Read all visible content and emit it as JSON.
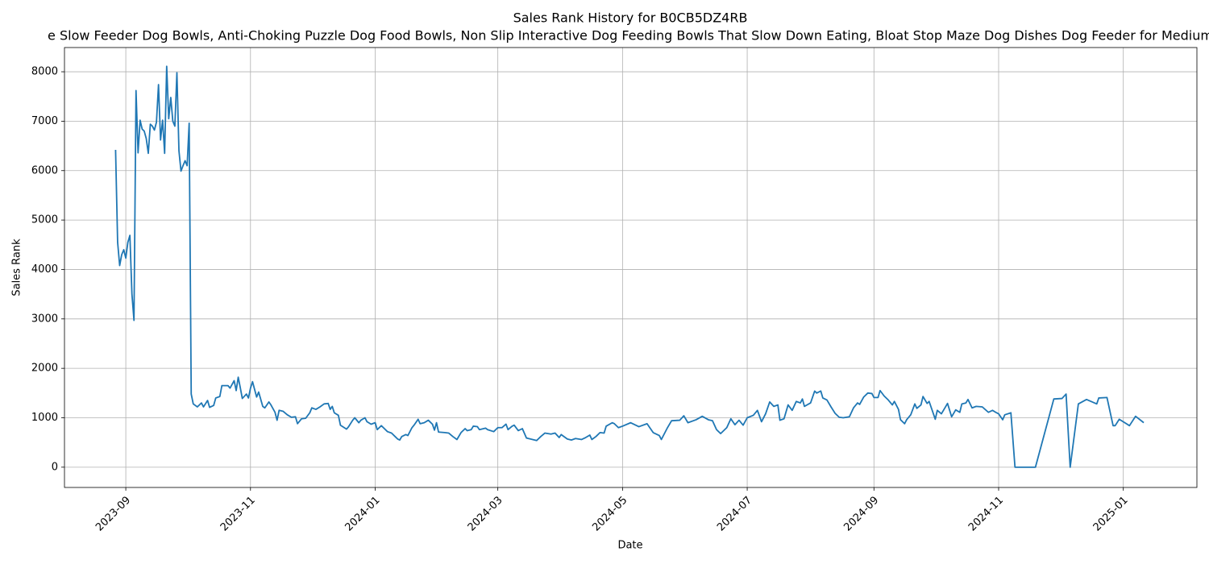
{
  "chart_data": {
    "type": "line",
    "title": "Sales Rank History for B0CB5DZ4RB",
    "subtitle": "e Slow Feeder Dog Bowls, Anti-Choking Puzzle Dog Food Bowls, Non Slip Interactive Dog Feeding Bowls That Slow Down Eating, Bloat Stop Maze Dog Dishes Dog Feeder for Medium",
    "x_label": "Date",
    "y_label": "Sales Rank",
    "color": "#1f77b4",
    "grid": true,
    "xlim": [
      "2023-08-02",
      "2025-02-06"
    ],
    "ylim": [
      -410,
      8490
    ],
    "yticks": [
      0,
      1000,
      2000,
      3000,
      4000,
      5000,
      6000,
      7000,
      8000
    ],
    "xticks": [
      {
        "value": "2023-09-01",
        "label": "2023-09"
      },
      {
        "value": "2023-11-01",
        "label": "2023-11"
      },
      {
        "value": "2024-01-01",
        "label": "2024-01"
      },
      {
        "value": "2024-03-01",
        "label": "2024-03"
      },
      {
        "value": "2024-05-01",
        "label": "2024-05"
      },
      {
        "value": "2024-07-01",
        "label": "2024-07"
      },
      {
        "value": "2024-09-01",
        "label": "2024-09"
      },
      {
        "value": "2024-11-01",
        "label": "2024-11"
      },
      {
        "value": "2025-01-01",
        "label": "2025-01"
      }
    ],
    "x": [
      "2023-08-27",
      "2023-08-28",
      "2023-08-29",
      "2023-08-30",
      "2023-08-31",
      "2023-09-01",
      "2023-09-02",
      "2023-09-03",
      "2023-09-04",
      "2023-09-05",
      "2023-09-06",
      "2023-09-07",
      "2023-09-08",
      "2023-09-09",
      "2023-09-10",
      "2023-09-11",
      "2023-09-12",
      "2023-09-13",
      "2023-09-14",
      "2023-09-15",
      "2023-09-16",
      "2023-09-17",
      "2023-09-18",
      "2023-09-19",
      "2023-09-20",
      "2023-09-21",
      "2023-09-22",
      "2023-09-23",
      "2023-09-24",
      "2023-09-25",
      "2023-09-26",
      "2023-09-27",
      "2023-09-28",
      "2023-09-29",
      "2023-09-30",
      "2023-10-01",
      "2023-10-02",
      "2023-10-03",
      "2023-10-04",
      "2023-10-06",
      "2023-10-08",
      "2023-10-09",
      "2023-10-11",
      "2023-10-12",
      "2023-10-14",
      "2023-10-15",
      "2023-10-17",
      "2023-10-18",
      "2023-10-21",
      "2023-10-22",
      "2023-10-24",
      "2023-10-25",
      "2023-10-26",
      "2023-10-27",
      "2023-10-28",
      "2023-10-30",
      "2023-10-31",
      "2023-11-01",
      "2023-11-02",
      "2023-11-04",
      "2023-11-05",
      "2023-11-07",
      "2023-11-08",
      "2023-11-10",
      "2023-11-11",
      "2023-11-13",
      "2023-11-14",
      "2023-11-15",
      "2023-11-17",
      "2023-11-19",
      "2023-11-21",
      "2023-11-23",
      "2023-11-24",
      "2023-11-26",
      "2023-11-28",
      "2023-11-30",
      "2023-12-01",
      "2023-12-03",
      "2023-12-05",
      "2023-12-07",
      "2023-12-09",
      "2023-12-10",
      "2023-12-11",
      "2023-12-12",
      "2023-12-14",
      "2023-12-15",
      "2023-12-18",
      "2023-12-19",
      "2023-12-21",
      "2023-12-22",
      "2023-12-24",
      "2023-12-25",
      "2023-12-27",
      "2023-12-28",
      "2023-12-30",
      "2024-01-01",
      "2024-01-02",
      "2024-01-04",
      "2024-01-05",
      "2024-01-07",
      "2024-01-09",
      "2024-01-11",
      "2024-01-12",
      "2024-01-13",
      "2024-01-14",
      "2024-01-16",
      "2024-01-17",
      "2024-01-19",
      "2024-01-20",
      "2024-01-22",
      "2024-01-23",
      "2024-01-25",
      "2024-01-27",
      "2024-01-29",
      "2024-01-30",
      "2024-01-31",
      "2024-02-01",
      "2024-02-04",
      "2024-02-06",
      "2024-02-08",
      "2024-02-10",
      "2024-02-12",
      "2024-02-14",
      "2024-02-15",
      "2024-02-17",
      "2024-02-18",
      "2024-02-20",
      "2024-02-21",
      "2024-02-24",
      "2024-02-25",
      "2024-02-28",
      "2024-03-01",
      "2024-03-03",
      "2024-03-05",
      "2024-03-06",
      "2024-03-08",
      "2024-03-09",
      "2024-03-11",
      "2024-03-13",
      "2024-03-15",
      "2024-03-17",
      "2024-03-20",
      "2024-03-22",
      "2024-03-24",
      "2024-03-27",
      "2024-03-29",
      "2024-03-31",
      "2024-04-01",
      "2024-04-04",
      "2024-04-06",
      "2024-04-08",
      "2024-04-11",
      "2024-04-13",
      "2024-04-15",
      "2024-04-16",
      "2024-04-18",
      "2024-04-20",
      "2024-04-22",
      "2024-04-23",
      "2024-04-26",
      "2024-04-27",
      "2024-04-29",
      "2024-05-01",
      "2024-05-05",
      "2024-05-09",
      "2024-05-13",
      "2024-05-16",
      "2024-05-19",
      "2024-05-20",
      "2024-05-23",
      "2024-05-25",
      "2024-05-29",
      "2024-05-31",
      "2024-06-02",
      "2024-06-06",
      "2024-06-09",
      "2024-06-12",
      "2024-06-14",
      "2024-06-16",
      "2024-06-18",
      "2024-06-21",
      "2024-06-23",
      "2024-06-25",
      "2024-06-27",
      "2024-06-29",
      "2024-07-01",
      "2024-07-04",
      "2024-07-06",
      "2024-07-08",
      "2024-07-10",
      "2024-07-12",
      "2024-07-14",
      "2024-07-16",
      "2024-07-17",
      "2024-07-19",
      "2024-07-21",
      "2024-07-23",
      "2024-07-25",
      "2024-07-27",
      "2024-07-28",
      "2024-07-29",
      "2024-08-01",
      "2024-08-03",
      "2024-08-04",
      "2024-08-06",
      "2024-08-07",
      "2024-08-09",
      "2024-08-11",
      "2024-08-13",
      "2024-08-15",
      "2024-08-17",
      "2024-08-20",
      "2024-08-22",
      "2024-08-24",
      "2024-08-25",
      "2024-08-27",
      "2024-08-29",
      "2024-08-31",
      "2024-09-01",
      "2024-09-03",
      "2024-09-04",
      "2024-09-06",
      "2024-09-08",
      "2024-09-10",
      "2024-09-11",
      "2024-09-13",
      "2024-09-14",
      "2024-09-16",
      "2024-09-17",
      "2024-09-19",
      "2024-09-21",
      "2024-09-22",
      "2024-09-24",
      "2024-09-25",
      "2024-09-27",
      "2024-09-28",
      "2024-10-01",
      "2024-10-02",
      "2024-10-04",
      "2024-10-05",
      "2024-10-07",
      "2024-10-09",
      "2024-10-11",
      "2024-10-13",
      "2024-10-14",
      "2024-10-16",
      "2024-10-17",
      "2024-10-19",
      "2024-10-21",
      "2024-10-24",
      "2024-10-27",
      "2024-10-29",
      "2024-10-31",
      "2024-11-01",
      "2024-11-03",
      "2024-11-04",
      "2024-11-07",
      "2024-11-09",
      "2024-11-19",
      "2024-11-28",
      "2024-12-02",
      "2024-12-04",
      "2024-12-06",
      "2024-12-10",
      "2024-12-14",
      "2024-12-19",
      "2024-12-20",
      "2024-12-24",
      "2024-12-27",
      "2024-12-28",
      "2024-12-30",
      "2025-01-04",
      "2025-01-07",
      "2025-01-11"
    ],
    "values": [
      6420,
      4550,
      4080,
      4300,
      4400,
      4230,
      4550,
      4690,
      3500,
      2970,
      7620,
      6360,
      7020,
      6840,
      6800,
      6650,
      6350,
      6940,
      6900,
      6820,
      6980,
      7740,
      6620,
      7020,
      6350,
      8110,
      7050,
      7480,
      7000,
      6900,
      7980,
      6400,
      5990,
      6100,
      6200,
      6100,
      6960,
      1480,
      1280,
      1220,
      1300,
      1220,
      1350,
      1210,
      1250,
      1400,
      1430,
      1650,
      1650,
      1600,
      1750,
      1550,
      1820,
      1610,
      1390,
      1480,
      1400,
      1600,
      1730,
      1420,
      1520,
      1230,
      1200,
      1320,
      1260,
      1110,
      950,
      1150,
      1130,
      1060,
      1010,
      1020,
      880,
      980,
      990,
      1100,
      1200,
      1170,
      1220,
      1280,
      1290,
      1170,
      1230,
      1100,
      1050,
      850,
      770,
      820,
      950,
      1000,
      900,
      950,
      1000,
      920,
      870,
      900,
      760,
      840,
      800,
      720,
      690,
      610,
      570,
      550,
      620,
      660,
      640,
      800,
      850,
      970,
      880,
      900,
      950,
      870,
      750,
      900,
      710,
      700,
      690,
      620,
      560,
      700,
      780,
      740,
      760,
      830,
      820,
      760,
      790,
      760,
      720,
      800,
      800,
      870,
      760,
      830,
      850,
      740,
      780,
      590,
      570,
      540,
      620,
      690,
      670,
      690,
      600,
      660,
      570,
      550,
      580,
      560,
      600,
      650,
      560,
      620,
      700,
      690,
      830,
      900,
      880,
      800,
      830,
      900,
      820,
      880,
      700,
      640,
      560,
      800,
      940,
      950,
      1040,
      900,
      960,
      1030,
      960,
      940,
      760,
      680,
      800,
      980,
      860,
      950,
      850,
      1000,
      1050,
      1150,
      920,
      1080,
      1320,
      1230,
      1260,
      950,
      980,
      1260,
      1150,
      1330,
      1300,
      1380,
      1230,
      1300,
      1540,
      1500,
      1540,
      1400,
      1360,
      1220,
      1090,
      1010,
      1000,
      1020,
      1200,
      1300,
      1270,
      1420,
      1500,
      1490,
      1410,
      1410,
      1550,
      1440,
      1360,
      1260,
      1330,
      1170,
      960,
      880,
      960,
      1060,
      1280,
      1190,
      1260,
      1430,
      1290,
      1330,
      970,
      1150,
      1080,
      1150,
      1290,
      1020,
      1160,
      1110,
      1280,
      1300,
      1370,
      1200,
      1230,
      1220,
      1110,
      1150,
      1100,
      1080,
      960,
      1060,
      1100,
      0,
      0,
      1380,
      1390,
      1480,
      0,
      1280,
      1370,
      1280,
      1400,
      1410,
      840,
      840,
      970,
      840,
      1030,
      900
    ]
  }
}
